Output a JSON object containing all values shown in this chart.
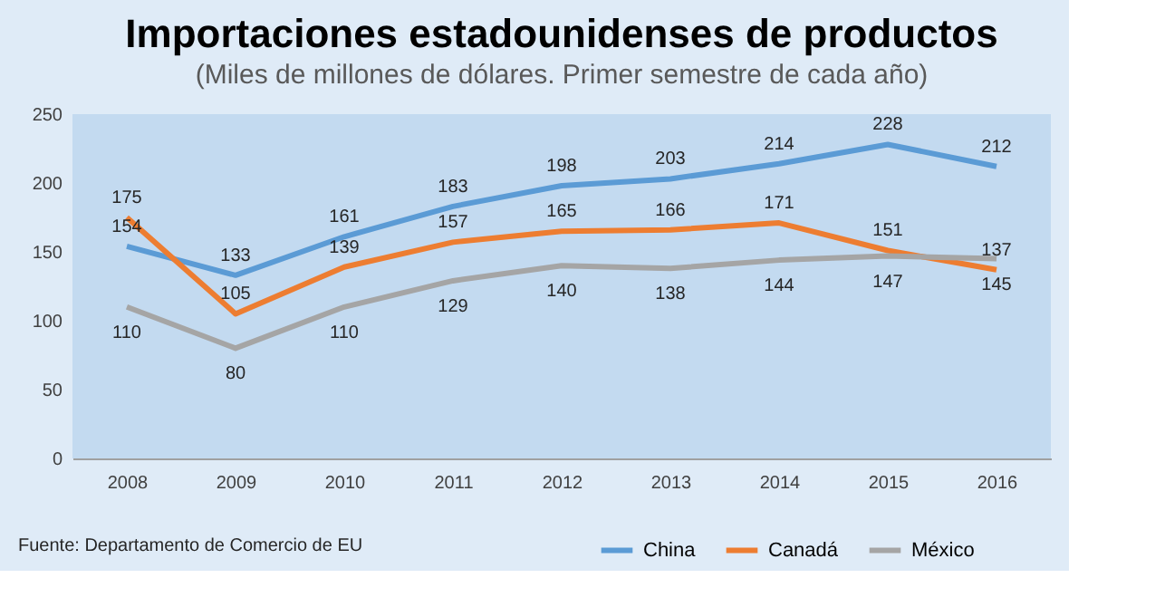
{
  "chart_data": {
    "type": "line",
    "title": "Importaciones estadounidenses de productos",
    "subtitle": "(Miles de millones de dólares. Primer semestre de cada año)",
    "categories": [
      "2008",
      "2009",
      "2010",
      "2011",
      "2012",
      "2013",
      "2014",
      "2015",
      "2016"
    ],
    "series": [
      {
        "name": "China",
        "color": "#5b9bd5",
        "values": [
          154,
          133,
          161,
          183,
          198,
          203,
          214,
          228,
          212
        ]
      },
      {
        "name": "Canadá",
        "color": "#ed7d31",
        "values": [
          175,
          105,
          139,
          157,
          165,
          166,
          171,
          151,
          137
        ]
      },
      {
        "name": "México",
        "color": "#a5a5a5",
        "values": [
          110,
          80,
          110,
          129,
          140,
          138,
          144,
          147,
          145
        ]
      }
    ],
    "ylim": [
      0,
      250
    ],
    "yticks": [
      0,
      50,
      100,
      150,
      200,
      250
    ],
    "grid": false,
    "legend": "bottom right",
    "data_labels": true,
    "marker": "none",
    "line_style": "solid",
    "annotations": [
      "Fuente: Departamento de Comercio de EU"
    ]
  }
}
